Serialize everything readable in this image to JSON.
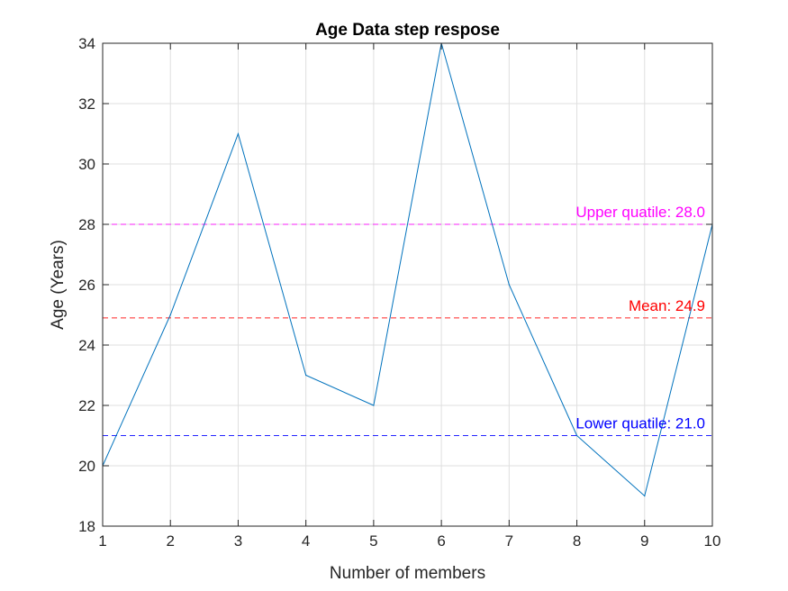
{
  "chart_data": {
    "type": "line",
    "title": "Age Data step respose",
    "xlabel": "Number of members",
    "ylabel": "Age (Years)",
    "xlim": [
      1,
      10
    ],
    "ylim": [
      18,
      34
    ],
    "xticks": [
      1,
      2,
      3,
      4,
      5,
      6,
      7,
      8,
      9,
      10
    ],
    "yticks": [
      18,
      20,
      22,
      24,
      26,
      28,
      30,
      32,
      34
    ],
    "grid": true,
    "series": [
      {
        "x": [
          1,
          2,
          3,
          4,
          5,
          6,
          7,
          8,
          9,
          10
        ],
        "values": [
          20,
          25,
          31,
          23,
          22,
          34,
          26,
          21,
          19,
          28
        ],
        "color": "#0072BD"
      }
    ],
    "reference_lines": [
      {
        "label": "Upper quatile: 28.0",
        "y": 28.0,
        "color": "#FF00FF"
      },
      {
        "label": "Mean: 24.9",
        "y": 24.9,
        "color": "#FF0000"
      },
      {
        "label": "Lower quatile: 21.0",
        "y": 21.0,
        "color": "#0000FF"
      }
    ]
  }
}
